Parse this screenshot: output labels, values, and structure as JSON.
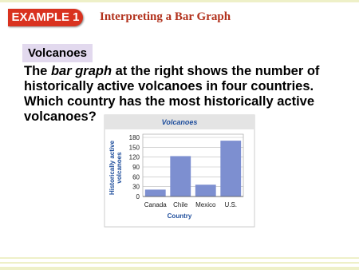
{
  "header": {
    "badge": "EXAMPLE 1",
    "title": "Interpreting a Bar Graph"
  },
  "section": {
    "title": "Volcanoes"
  },
  "question": {
    "before": "The",
    "term": "bar graph",
    "after": "at the right shows the number of historically active volcanoes in four countries.  Which country has the most historically active volcanoes?"
  },
  "chart_data": {
    "type": "bar",
    "title": "Volcanoes",
    "y_label": [
      "Historically active",
      "volcanoes"
    ],
    "x_label": "Country",
    "categories": [
      "Canada",
      "Chile",
      "Mexico",
      "U.S."
    ],
    "values": [
      21,
      123,
      36,
      170
    ],
    "color": "#7d8fd0",
    "ylim": [
      0,
      180
    ],
    "yticks": [
      0,
      30,
      60,
      90,
      120,
      150,
      180
    ],
    "grid": true
  }
}
